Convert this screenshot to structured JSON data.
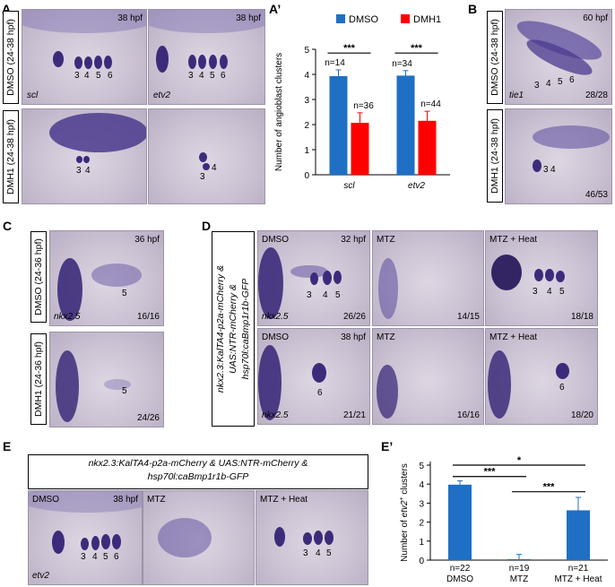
{
  "panels": {
    "A": {
      "letter": "A",
      "row_labels": [
        "DMSO (24-38 hpf)",
        "DMH1 (24-38 hpf)"
      ],
      "stage": "38 hpf",
      "genes": [
        "scl",
        "etv2"
      ],
      "dmso_clusters": [
        "3",
        "4",
        "5",
        "6"
      ],
      "dmh1_clusters": [
        "3",
        "4"
      ]
    },
    "A2": {
      "letter": "A’"
    },
    "B": {
      "letter": "B",
      "stage": "60 hpf",
      "gene": "tie1",
      "row_labels": [
        "DMSO (24-38 hpf)",
        "DMH1 (24-38 hpf)"
      ],
      "dmso_clusters": [
        "3",
        "4",
        "5",
        "6"
      ],
      "dmh1_clusters": [
        "3",
        "4"
      ],
      "dmso_ratio": "28/28",
      "dmh1_ratio": "46/53"
    },
    "C": {
      "letter": "C",
      "stage": "36 hpf",
      "gene": "nkx2.5",
      "row_labels": [
        "DMSO (24-36 hpf)",
        "DMH1 (24-36 hpf)"
      ],
      "cluster": "5",
      "dmso_ratio": "16/16",
      "dmh1_ratio": "24/26"
    },
    "D": {
      "letter": "D",
      "genotype": "nkx2.3:KalTA4-p2a-mCherry & UAS:NTR-mCherry & hsp70l:caBmp1r1b-GFP",
      "genotype_lines": [
        "nkx2.3:KalTA4-p2a-mCherry &",
        "UAS:NTR-mCherry &",
        "hsp70l:caBmp1r1b-GFP"
      ],
      "gene": "nkx2.5",
      "conditions": [
        "DMSO",
        "MTZ",
        "MTZ + Heat"
      ],
      "stage_top": "32 hpf",
      "stage_bottom": "38 hpf",
      "top_dmso_clusters": [
        "3",
        "4",
        "5"
      ],
      "top_heat_clusters": [
        "3",
        "4",
        "5"
      ],
      "bottom_cluster": "6",
      "ratios_top": [
        "26/26",
        "14/15",
        "18/18"
      ],
      "ratios_bottom": [
        "21/21",
        "16/16",
        "18/20"
      ]
    },
    "E": {
      "letter": "E",
      "genotype_lines": [
        "nkx2.3:KalTA4-p2a-mCherry & UAS:NTR-mCherry &",
        "hsp70l:caBmp1r1b-GFP"
      ],
      "stage": "38 hpf",
      "gene": "etv2",
      "conditions": [
        "DMSO",
        "MTZ",
        "MTZ + Heat"
      ],
      "dmso_clusters": [
        "3",
        "4",
        "5",
        "6"
      ],
      "heat_clusters": [
        "3",
        "4",
        "5"
      ]
    },
    "E2": {
      "letter": "E’"
    }
  },
  "chart_data": [
    {
      "id": "A_prime",
      "type": "bar",
      "categories": [
        "scl",
        "etv2"
      ],
      "series": [
        {
          "name": "DMSO",
          "values": [
            3.93,
            3.95
          ],
          "errors": [
            0.25,
            0.2
          ],
          "n": [
            "n=14",
            "n=34"
          ],
          "color": "#1f6fc5"
        },
        {
          "name": "DMH1",
          "values": [
            2.07,
            2.15
          ],
          "errors": [
            0.4,
            0.38
          ],
          "n": [
            "n=36",
            "n=44"
          ],
          "color": "#ff0000"
        }
      ],
      "ylabel": "Number of angioblast clusters",
      "ylim": [
        0,
        5
      ],
      "yticks": [
        "0",
        "1",
        "2",
        "3",
        "4",
        "5"
      ],
      "significance": [
        "***",
        "***"
      ],
      "legend": "top"
    },
    {
      "id": "E_prime",
      "type": "bar",
      "categories": [
        "n=22\nDMSO",
        "n=19\nMTZ",
        "n=21\nMTZ + Heat"
      ],
      "category_n": [
        "n=22",
        "n=19",
        "n=21"
      ],
      "category_names": [
        "DMSO",
        "MTZ",
        "MTZ + Heat"
      ],
      "values": [
        3.97,
        0.05,
        2.62
      ],
      "errors": [
        0.2,
        0.25,
        0.68
      ],
      "color": "#1f6fc5",
      "ylabel_prefix": "Number of ",
      "ylabel_gene": "etv2",
      "ylabel_suffix": " clusters",
      "ylabel_sup": "+",
      "ylim": [
        0,
        5
      ],
      "yticks": [
        "0",
        "1",
        "2",
        "3",
        "4",
        "5"
      ],
      "significance": [
        {
          "pair": [
            0,
            1
          ],
          "label": "***"
        },
        {
          "pair": [
            1,
            2
          ],
          "label": "***"
        },
        {
          "pair": [
            0,
            2
          ],
          "label": "*"
        }
      ]
    }
  ]
}
